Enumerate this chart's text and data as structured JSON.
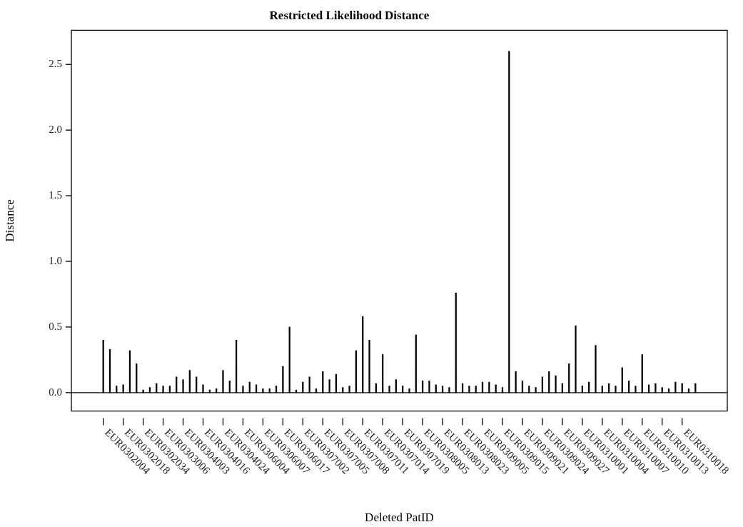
{
  "chart_data": {
    "type": "bar",
    "title": "Restricted Likelihood Distance",
    "xlabel": "Deleted PatID",
    "ylabel": "Distance",
    "categories": [
      "EUR0302004",
      null,
      null,
      "EUR0302018",
      null,
      null,
      "EUR0302034",
      null,
      null,
      "EUR0303006",
      null,
      null,
      "EUR0304003",
      null,
      null,
      "EUR0304016",
      null,
      null,
      "EUR0304024",
      null,
      null,
      "EUR0306004",
      null,
      null,
      "EUR0306007",
      null,
      null,
      "EUR0306017",
      null,
      null,
      "EUR0307002",
      null,
      null,
      "EUR0307005",
      null,
      null,
      "EUR0307008",
      null,
      null,
      "EUR0307011",
      null,
      null,
      "EUR0307014",
      null,
      null,
      "EUR0307019",
      null,
      null,
      "EUR0308005",
      null,
      null,
      "EUR0308013",
      null,
      null,
      "EUR0308023",
      null,
      null,
      "EUR0309005",
      null,
      null,
      "EUR0309015",
      null,
      null,
      "EUR0309021",
      null,
      null,
      "EUR0309024",
      null,
      null,
      "EUR0309027",
      null,
      null,
      "EUR0310001",
      null,
      null,
      "EUR0310004",
      null,
      null,
      "EUR0310007",
      null,
      null,
      "EUR0310010",
      null,
      null,
      "EUR0310013",
      null,
      null,
      "EUR0310018",
      null,
      null
    ],
    "values": [
      0.4,
      0.33,
      0.05,
      0.06,
      0.32,
      0.22,
      0.02,
      0.04,
      0.07,
      0.05,
      0.05,
      0.12,
      0.1,
      0.17,
      0.12,
      0.06,
      0.02,
      0.03,
      0.17,
      0.09,
      0.4,
      0.05,
      0.08,
      0.06,
      0.03,
      0.03,
      0.05,
      0.2,
      0.5,
      0.02,
      0.08,
      0.12,
      0.03,
      0.16,
      0.1,
      0.14,
      0.04,
      0.05,
      0.32,
      0.58,
      0.4,
      0.07,
      0.29,
      0.05,
      0.1,
      0.05,
      0.03,
      0.44,
      0.09,
      0.09,
      0.06,
      0.05,
      0.04,
      0.76,
      0.07,
      0.05,
      0.05,
      0.08,
      0.08,
      0.06,
      0.04,
      2.6,
      0.16,
      0.09,
      0.05,
      0.04,
      0.12,
      0.16,
      0.13,
      0.07,
      0.22,
      0.51,
      0.05,
      0.08,
      0.36,
      0.05,
      0.07,
      0.05,
      0.19,
      0.09,
      0.05,
      0.29,
      0.06,
      0.07,
      0.04,
      0.03,
      0.08,
      0.07,
      0.03,
      0.07
    ],
    "color": "#000000",
    "ylim": [
      -0.14,
      2.76
    ],
    "yticks": [
      {
        "value": 0,
        "label": "0.0"
      },
      0.5,
      {
        "value": 1,
        "label": "1.0"
      },
      1.5,
      {
        "value": 2,
        "label": "2.0"
      },
      2.5
    ],
    "ref_lines": [
      {
        "axis": "y",
        "value": 0,
        "color": "#000000"
      }
    ],
    "grid": false,
    "legend": false
  }
}
